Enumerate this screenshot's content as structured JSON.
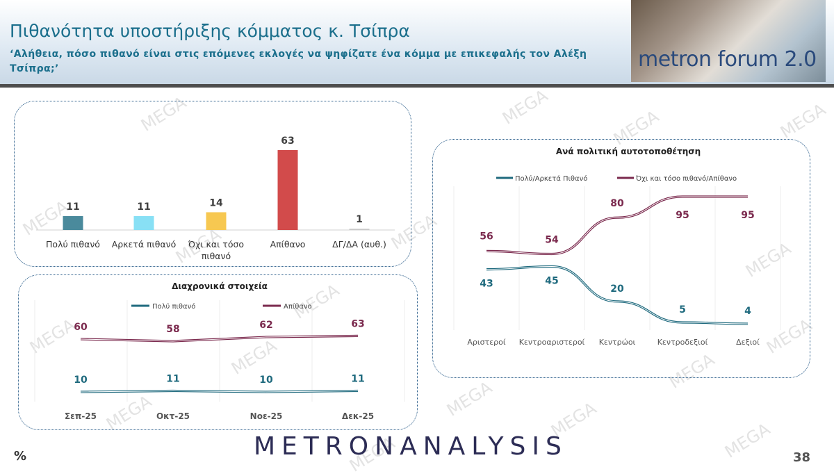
{
  "header": {
    "title": "Πιθανότητα υποστήριξης κόμματος κ. Τσίπρα",
    "subtitle": "‘Αλήθεια, πόσο πιθανό είναι στις επόμενες εκλογές να ψηφίζατε ένα κόμμα με επικεφαλής τον Αλέξη Τσίπρα;’",
    "logo": "metron forum 2.0"
  },
  "footer": {
    "brand": "METRONANALYSIS",
    "unit": "%",
    "page": "38"
  },
  "watermark": "MEGA",
  "colors": {
    "title": "#1b6f8c",
    "teal": "#1f6a7e",
    "maroon": "#7b2a4e",
    "grid": "#e6e6e6"
  },
  "chart_data": [
    {
      "type": "bar",
      "categories": [
        "Πολύ πιθανό",
        "Αρκετά πιθανό",
        "Όχι και τόσο πιθανό",
        "Απίθανο",
        "ΔΓ/ΔΑ (αυθ.)"
      ],
      "values": [
        11,
        11,
        14,
        63,
        1
      ],
      "colors": [
        "#4a8a9c",
        "#88e0f5",
        "#f7c851",
        "#d24b4b",
        "#c9c9c9"
      ],
      "title": ""
    },
    {
      "type": "line",
      "title": "Διαχρονικά στοιχεία",
      "categories": [
        "Σεπ-25",
        "Οκτ-25",
        "Νοε-25",
        "Δεκ-25"
      ],
      "series": [
        {
          "name": "Πολύ πιθανό",
          "values": [
            10,
            11,
            10,
            11
          ],
          "color": "#1f6a7e"
        },
        {
          "name": "Απίθανο",
          "values": [
            60,
            58,
            62,
            63
          ],
          "color": "#7b2a4e"
        }
      ],
      "legend": "top"
    },
    {
      "type": "line",
      "title": "Ανά πολιτική αυτοτοποθέτηση",
      "categories": [
        "Αριστεροί",
        "Κεντροαριστεροί",
        "Κεντρώοι",
        "Κεντροδεξιοί",
        "Δεξιοί"
      ],
      "series": [
        {
          "name": "Πολύ/Αρκετά Πιθανό",
          "values": [
            43,
            45,
            20,
            5,
            4
          ],
          "color": "#1f6a7e"
        },
        {
          "name": "Όχι και τόσο πιθανό/Απίθανο",
          "values": [
            56,
            54,
            80,
            95,
            95
          ],
          "color": "#7b2a4e"
        }
      ],
      "legend": "top",
      "grid": true
    }
  ]
}
